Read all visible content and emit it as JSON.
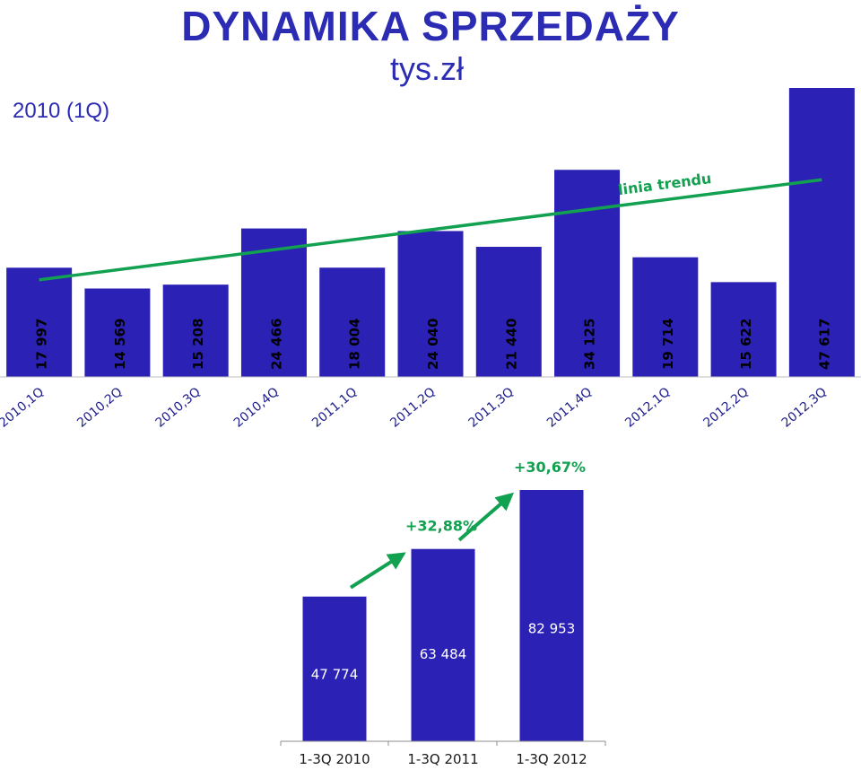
{
  "header": {
    "title": "DYNAMIKA SPRZEDAŻY",
    "subtitle": "tys.zł",
    "corner_label": "2010 (1Q)"
  },
  "colors": {
    "bar": "#2b22b5",
    "trend": "#12a150",
    "title": "#2b2bb3",
    "label_light": "#ffffff",
    "label_dark": "#000000"
  },
  "chart_data": [
    {
      "type": "bar",
      "categories": [
        "2010,1Q",
        "2010,2Q",
        "2010,3Q",
        "2010,4Q",
        "2011,1Q",
        "2011,2Q",
        "2011,3Q",
        "2011,4Q",
        "2012,1Q",
        "2012,2Q",
        "2012,3Q"
      ],
      "values": [
        17997,
        14569,
        15208,
        24466,
        18004,
        24040,
        21440,
        34125,
        19714,
        15622,
        47617
      ],
      "value_labels": [
        "17 997",
        "14 569",
        "15 208",
        "24 466",
        "18 004",
        "24 040",
        "21 440",
        "34 125",
        "19 714",
        "15 622",
        "47 617"
      ],
      "trendline": {
        "label": "linia trendu",
        "start": 16000,
        "end": 32500
      },
      "title": "DYNAMIKA SPRZEDAŻY",
      "ylabel": "",
      "grid": false
    },
    {
      "type": "bar",
      "categories": [
        "1-3Q 2010",
        "1-3Q 2011",
        "1-3Q 2012"
      ],
      "values": [
        47774,
        63484,
        82953
      ],
      "value_labels": [
        "47 774",
        "63 484",
        "82 953"
      ],
      "growth_labels": [
        "+32,88%",
        "+30,67%"
      ],
      "grid": false
    }
  ]
}
